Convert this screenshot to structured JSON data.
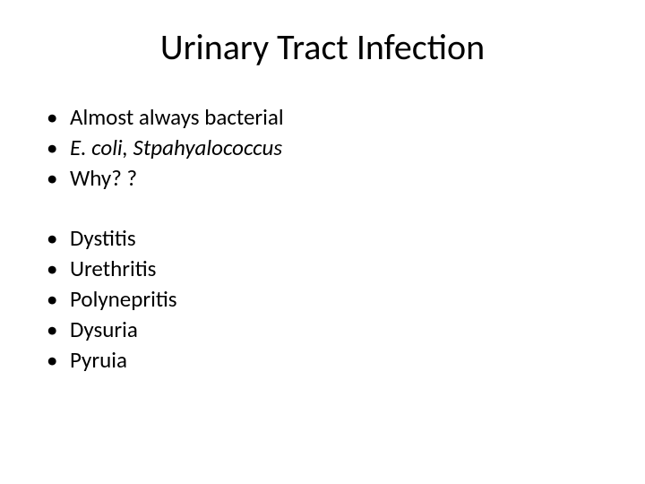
{
  "slide": {
    "title": "Urinary Tract Infection",
    "title_fontsize": 40,
    "body_fontsize": 25,
    "background_color": "#ffffff",
    "text_color": "#000000",
    "bullet_char": "•",
    "group1": [
      {
        "text": "Almost always bacterial",
        "italic": false
      },
      {
        "text": "E. coli, Stpahyalococcus",
        "italic": true
      },
      {
        "text": "Why? ?",
        "italic": false
      }
    ],
    "group2": [
      {
        "text": "Dystitis",
        "italic": false
      },
      {
        "text": "Urethritis",
        "italic": false
      },
      {
        "text": "Polynepritis",
        "italic": false
      },
      {
        "text": "Dysuria",
        "italic": false
      },
      {
        "text": "Pyruia",
        "italic": false
      }
    ]
  }
}
